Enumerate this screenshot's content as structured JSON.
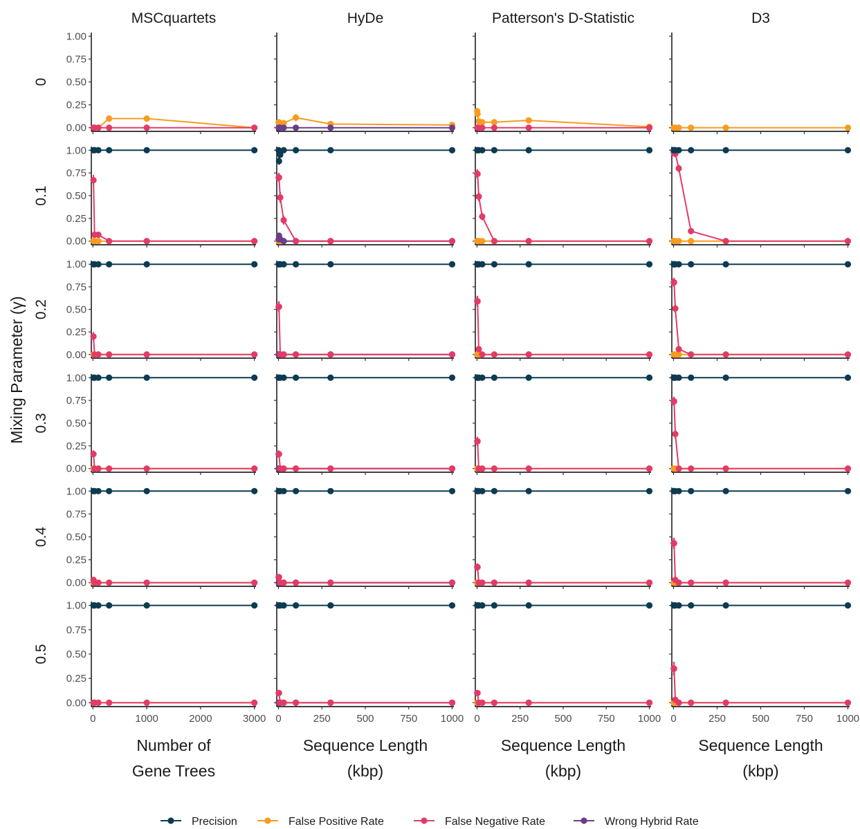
{
  "chart_data": {
    "type": "line",
    "facet_columns": [
      "MSCquartets",
      "HyDe",
      "Patterson's D-Statistic",
      "D3"
    ],
    "facet_rows": [
      "0",
      "0.1",
      "0.2",
      "0.3",
      "0.4",
      "0.5"
    ],
    "ylabel": "Mixing Parameter (γ)",
    "xlabels": [
      [
        "Number of",
        "Gene Trees"
      ],
      [
        "Sequence Length",
        "(kbp)"
      ],
      [
        "Sequence Length",
        "(kbp)"
      ],
      [
        "Sequence Length",
        "(kbp)"
      ]
    ],
    "x_ticks": [
      [
        0,
        1000,
        2000,
        3000
      ],
      [
        0,
        250,
        500,
        750,
        1000
      ],
      [
        0,
        250,
        500,
        750,
        1000
      ],
      [
        0,
        250,
        500,
        750,
        1000
      ]
    ],
    "x_tick_labels": [
      [
        "0",
        "1000",
        "2000",
        "3000"
      ],
      [
        "0",
        "250",
        "500",
        "750",
        "1000"
      ],
      [
        "0",
        "250",
        "500",
        "750",
        "1000"
      ],
      [
        "0",
        "250",
        "500",
        "750",
        "1000"
      ]
    ],
    "xlim": [
      [
        -30,
        3030
      ],
      [
        -10,
        1010
      ],
      [
        -10,
        1010
      ],
      [
        -10,
        1010
      ]
    ],
    "y_ticks": [
      0,
      0.25,
      0.5,
      0.75,
      1
    ],
    "y_tick_labels": [
      "0.00",
      "0.25",
      "0.50",
      "0.75",
      "1.00"
    ],
    "ylim": [
      -0.04,
      1.04
    ],
    "x_values": [
      [
        10,
        30,
        100,
        300,
        1000,
        3000
      ],
      [
        1,
        3,
        10,
        30,
        100,
        300,
        1000
      ],
      [
        1,
        3,
        10,
        30,
        100,
        300,
        1000
      ],
      [
        1,
        3,
        10,
        30,
        100,
        300,
        1000
      ]
    ],
    "series_names": [
      "Precision",
      "False Positive Rate",
      "False Negative Rate",
      "Wrong Hybrid Rate"
    ],
    "colors": {
      "Precision": "#0d3b51",
      "False Positive Rate": "#f89b20",
      "False Negative Rate": "#e23b68",
      "Wrong Hybrid Rate": "#6a3d8a"
    },
    "legend_position": "bottom",
    "grid": false,
    "panels": [
      [
        {
          "fpr": [
            0,
            0,
            0,
            0.1,
            0.1,
            0
          ],
          "fpr_err": [
            0,
            0,
            0,
            0.035,
            0.035,
            0
          ],
          "fnr": [
            0,
            0,
            0,
            0,
            0,
            0
          ]
        },
        {
          "fpr": [
            0.06,
            0.05,
            0.05,
            0.05,
            0.11,
            0.04,
            0.03
          ],
          "fpr_err": [
            0.02,
            0.02,
            0.02,
            0.02,
            0.04,
            0.015,
            0.012
          ],
          "whr": [
            0,
            0,
            0,
            0,
            0,
            0,
            0
          ]
        },
        {
          "fpr": [
            0.18,
            0.15,
            0.07,
            0.06,
            0.06,
            0.08,
            0.01
          ],
          "fpr_err": [
            0.035,
            0.03,
            0.02,
            0.02,
            0.02,
            0.025,
            0.01
          ],
          "fnr": [
            0,
            0,
            0,
            0,
            0,
            0,
            0
          ]
        },
        {
          "fpr": [
            0,
            0,
            0,
            0,
            0,
            0,
            0
          ]
        }
      ],
      [
        {
          "precision": [
            1,
            1,
            1,
            1,
            1,
            1
          ],
          "fpr": [
            0,
            0,
            0,
            0,
            0,
            0
          ],
          "fnr": [
            0.67,
            0.07,
            0.07,
            0,
            0,
            0
          ],
          "fnr_err": [
            0.06,
            0.02,
            0.02,
            0,
            0,
            0
          ]
        },
        {
          "precision": [
            1,
            0.88,
            0.95,
            1,
            1,
            1,
            1
          ],
          "precision_err": [
            0,
            0.04,
            0.03,
            0,
            0,
            0,
            0
          ],
          "fpr": [
            0,
            0,
            0,
            0,
            0,
            0,
            0
          ],
          "fnr": [
            0.7,
            0.7,
            0.48,
            0.23,
            0,
            0,
            0
          ],
          "fnr_err": [
            0.05,
            0.05,
            0.06,
            0.05,
            0,
            0,
            0
          ],
          "whr": [
            0.02,
            0.06,
            0.02,
            0,
            0,
            0,
            0
          ]
        },
        {
          "precision": [
            1,
            1,
            1,
            1,
            1,
            1,
            1
          ],
          "fpr": [
            0,
            0,
            0,
            0,
            0,
            0,
            0
          ],
          "fnr": [
            0.74,
            0.74,
            0.49,
            0.27,
            0,
            0,
            0
          ],
          "fnr_err": [
            0.05,
            0.05,
            0.05,
            0.04,
            0,
            0,
            0
          ]
        },
        {
          "precision": [
            1,
            1,
            1,
            1,
            1,
            1,
            1
          ],
          "fpr": [
            0,
            0,
            0,
            0,
            0,
            0,
            0
          ],
          "fnr": [
            0.98,
            0.97,
            0.96,
            0.8,
            0.11,
            0,
            0
          ],
          "fnr_err": [
            0.02,
            0.02,
            0.02,
            0.04,
            0.03,
            0,
            0
          ]
        }
      ],
      [
        {
          "precision": [
            1,
            1,
            1,
            1,
            1,
            1
          ],
          "fpr": [
            0,
            0,
            0,
            0,
            0,
            0
          ],
          "fnr": [
            0.2,
            0,
            0,
            0,
            0,
            0
          ],
          "fnr_err": [
            0.05,
            0,
            0,
            0,
            0,
            0
          ]
        },
        {
          "precision": [
            1,
            1,
            1,
            1,
            1,
            1,
            1
          ],
          "fpr": [
            0,
            0,
            0,
            0,
            0,
            0,
            0
          ],
          "fnr": [
            0.53,
            0.53,
            0,
            0,
            0,
            0,
            0
          ],
          "fnr_err": [
            0.06,
            0.06,
            0,
            0,
            0,
            0,
            0
          ],
          "whr": [
            0,
            0,
            0,
            0,
            0,
            0,
            0
          ]
        },
        {
          "precision": [
            1,
            1,
            1,
            1,
            1,
            1,
            1
          ],
          "fpr": [
            0,
            0,
            0,
            0,
            0,
            0,
            0
          ],
          "fnr": [
            0.59,
            0.59,
            0.06,
            0,
            0,
            0,
            0
          ],
          "fnr_err": [
            0.06,
            0.06,
            0.02,
            0,
            0,
            0,
            0
          ]
        },
        {
          "precision": [
            1,
            1,
            1,
            1,
            1,
            1,
            1
          ],
          "fpr": [
            0,
            0,
            0,
            0,
            0,
            0,
            0
          ],
          "fnr": [
            0.8,
            0.8,
            0.51,
            0.06,
            0,
            0,
            0
          ],
          "fnr_err": [
            0.05,
            0.05,
            0.05,
            0.02,
            0,
            0,
            0
          ]
        }
      ],
      [
        {
          "precision": [
            1,
            1,
            1,
            1,
            1,
            1
          ],
          "fpr": [
            0,
            0,
            0,
            0,
            0,
            0
          ],
          "fnr": [
            0.16,
            0,
            0,
            0,
            0,
            0
          ],
          "fnr_err": [
            0.04,
            0,
            0,
            0,
            0,
            0
          ]
        },
        {
          "precision": [
            1,
            1,
            1,
            1,
            1,
            1,
            1
          ],
          "fpr": [
            0,
            0,
            0,
            0,
            0,
            0,
            0
          ],
          "fnr": [
            0.16,
            0.16,
            0,
            0,
            0,
            0,
            0
          ],
          "fnr_err": [
            0.04,
            0.04,
            0,
            0,
            0,
            0,
            0
          ],
          "whr": [
            0,
            0,
            0,
            0,
            0,
            0,
            0
          ]
        },
        {
          "precision": [
            1,
            1,
            1,
            1,
            1,
            1,
            1
          ],
          "fpr": [
            0,
            0,
            0,
            0,
            0,
            0,
            0
          ],
          "fnr": [
            0.3,
            0.3,
            0,
            0,
            0,
            0,
            0
          ],
          "fnr_err": [
            0.05,
            0.05,
            0,
            0,
            0,
            0,
            0
          ]
        },
        {
          "precision": [
            1,
            1,
            1,
            1,
            1,
            1,
            1
          ],
          "fpr": [
            0,
            0,
            0,
            0,
            0,
            0,
            0
          ],
          "fnr": [
            0.74,
            0.74,
            0.38,
            0,
            0,
            0,
            0
          ],
          "fnr_err": [
            0.05,
            0.05,
            0.05,
            0,
            0,
            0,
            0
          ]
        }
      ],
      [
        {
          "precision": [
            1,
            1,
            1,
            1,
            1,
            1
          ],
          "fpr": [
            0,
            0,
            0,
            0,
            0,
            0
          ],
          "fnr": [
            0.03,
            0,
            0,
            0,
            0,
            0
          ],
          "fnr_err": [
            0.015,
            0,
            0,
            0,
            0,
            0
          ]
        },
        {
          "precision": [
            1,
            1,
            1,
            1,
            1,
            1,
            1
          ],
          "fpr": [
            0,
            0,
            0,
            0,
            0,
            0,
            0
          ],
          "fnr": [
            0.06,
            0.06,
            0,
            0,
            0,
            0,
            0
          ],
          "fnr_err": [
            0.02,
            0.02,
            0,
            0,
            0,
            0,
            0
          ],
          "whr": [
            0,
            0,
            0,
            0,
            0,
            0,
            0
          ]
        },
        {
          "precision": [
            1,
            1,
            1,
            1,
            1,
            1,
            1
          ],
          "fpr": [
            0,
            0,
            0,
            0,
            0,
            0,
            0
          ],
          "fnr": [
            0.17,
            0.17,
            0,
            0,
            0,
            0,
            0
          ],
          "fnr_err": [
            0.04,
            0.04,
            0,
            0,
            0,
            0,
            0
          ]
        },
        {
          "precision": [
            1,
            1,
            1,
            1,
            1,
            1,
            1
          ],
          "fpr": [
            0,
            0,
            0,
            0,
            0,
            0,
            0
          ],
          "fnr": [
            0.43,
            0.43,
            0.03,
            0,
            0,
            0,
            0
          ],
          "fnr_err": [
            0.06,
            0.06,
            0.015,
            0,
            0,
            0,
            0
          ]
        }
      ],
      [
        {
          "precision": [
            1,
            1,
            1,
            1,
            1,
            1
          ],
          "fpr": [
            0,
            0,
            0,
            0,
            0,
            0
          ],
          "fnr": [
            0,
            0,
            0,
            0,
            0,
            0
          ]
        },
        {
          "precision": [
            1,
            1,
            1,
            1,
            1,
            1,
            1
          ],
          "fpr": [
            0,
            0,
            0,
            0,
            0,
            0,
            0
          ],
          "fnr": [
            0.1,
            0.1,
            0,
            0,
            0,
            0,
            0
          ],
          "fnr_err": [
            0.03,
            0.03,
            0,
            0,
            0,
            0,
            0
          ],
          "whr": [
            0,
            0,
            0,
            0,
            0,
            0,
            0
          ]
        },
        {
          "precision": [
            1,
            1,
            1,
            1,
            1,
            1,
            1
          ],
          "fpr": [
            0,
            0,
            0,
            0,
            0,
            0,
            0
          ],
          "fnr": [
            0.1,
            0.1,
            0,
            0,
            0,
            0,
            0
          ],
          "fnr_err": [
            0.03,
            0.03,
            0,
            0,
            0,
            0,
            0
          ]
        },
        {
          "precision": [
            1,
            1,
            1,
            1,
            1,
            1,
            1
          ],
          "fpr": [
            0,
            0,
            0,
            0,
            0,
            0,
            0
          ],
          "fnr": [
            0.35,
            0.35,
            0.03,
            0,
            0,
            0,
            0
          ],
          "fnr_err": [
            0.07,
            0.07,
            0.015,
            0,
            0,
            0,
            0
          ]
        }
      ]
    ]
  }
}
